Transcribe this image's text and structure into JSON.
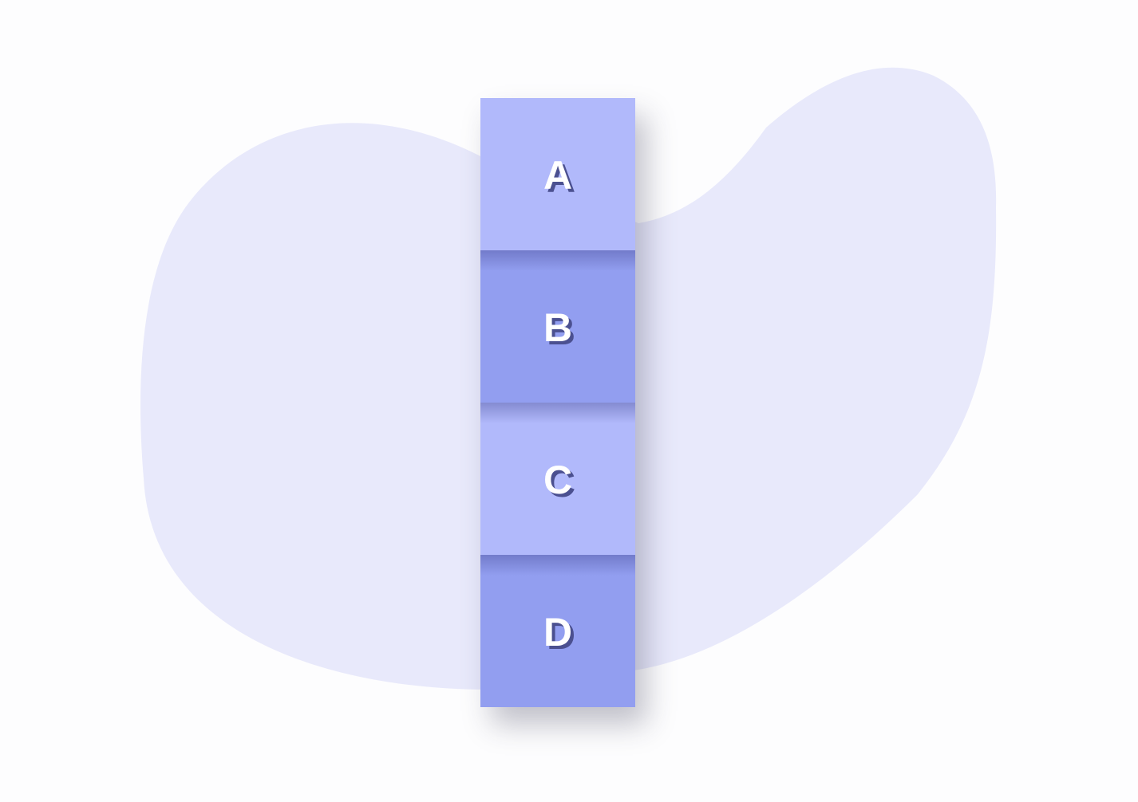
{
  "background": {
    "page_color": "#fdfdfe",
    "blob_color": "#e8e9fb"
  },
  "tiles": [
    {
      "label": "A",
      "color": "#b1b9fb"
    },
    {
      "label": "B",
      "color": "#929ef0"
    },
    {
      "label": "C",
      "color": "#b1b9fb"
    },
    {
      "label": "D",
      "color": "#929ef0"
    }
  ],
  "label_color": "#ffffff",
  "label_shadow_color": "#4b5090"
}
